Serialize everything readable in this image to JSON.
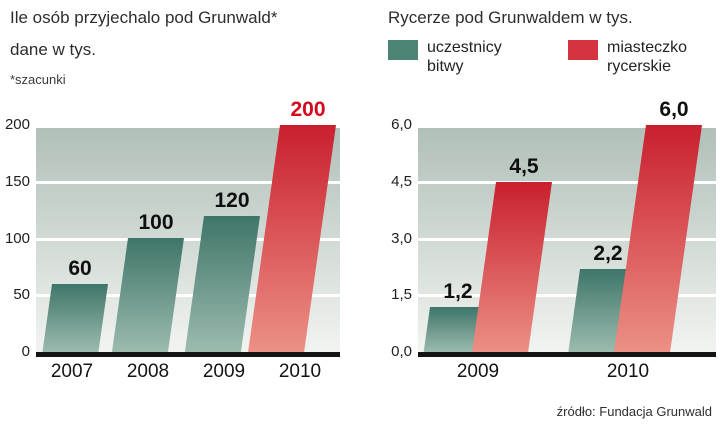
{
  "source": "źródło: Fundacja Grunwald",
  "colors": {
    "teal_top": "#3f7569",
    "teal_bottom": "#9cbbaf",
    "red_top": "#c91f2e",
    "red_bottom": "#ec9086",
    "legend_teal": "#4c8476",
    "legend_red": "#d53340",
    "value_red": "#d40a1e",
    "plot_top": "#b0bfb8",
    "plot_bottom": "#f3f5f2"
  },
  "chart_data": [
    {
      "type": "bar",
      "title": "Ile osób przyjechalo pod Grunwald*",
      "subtitle": "dane w tys.",
      "footnote": "*szacunki",
      "categories": [
        "2007",
        "2008",
        "2009",
        "2010"
      ],
      "values": [
        60,
        100,
        120,
        200
      ],
      "value_labels": [
        "60",
        "100",
        "120",
        "200"
      ],
      "bar_colors": [
        "teal",
        "teal",
        "teal",
        "red"
      ],
      "label_colors": [
        "black",
        "black",
        "black",
        "red"
      ],
      "ytick_labels": [
        "200",
        "150",
        "100",
        "50",
        "0"
      ],
      "ylim": [
        0,
        200
      ],
      "grid": true,
      "legend_position": "none"
    },
    {
      "type": "bar",
      "title": "Rycerze pod Grunwaldem w tys.",
      "categories": [
        "2009",
        "2010"
      ],
      "series": [
        {
          "name": "uczestnicy bitwy",
          "color": "teal",
          "values": [
            1.2,
            2.2
          ],
          "value_labels": [
            "1,2",
            "2,2"
          ]
        },
        {
          "name": "miasteczko rycerskie",
          "color": "red",
          "values": [
            4.5,
            6.0
          ],
          "value_labels": [
            "4,5",
            "6,0"
          ]
        }
      ],
      "legend": [
        {
          "line1": "uczestnicy",
          "line2": "bitwy",
          "color": "teal"
        },
        {
          "line1": "miasteczko",
          "line2": "rycerskie",
          "color": "red"
        }
      ],
      "ytick_labels": [
        "6,0",
        "4,5",
        "3,0",
        "1,5",
        "0,0"
      ],
      "ylim": [
        0,
        6
      ],
      "grid": true,
      "legend_position": "top"
    }
  ]
}
